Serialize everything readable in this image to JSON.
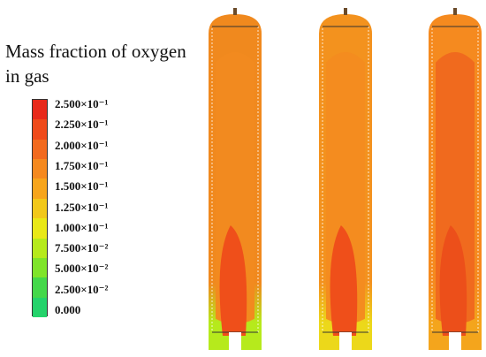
{
  "legend": {
    "title_line1": "Mass fraction of oxygen",
    "title_line2": "in gas",
    "ticks": [
      "2.500×10⁻¹",
      "2.250×10⁻¹",
      "2.000×10⁻¹",
      "1.750×10⁻¹",
      "1.500×10⁻¹",
      "1.250×10⁻¹",
      "1.000×10⁻¹",
      "7.500×10⁻²",
      "5.000×10⁻²",
      "2.500×10⁻²",
      "0.000"
    ],
    "colors": [
      "#e8291a",
      "#ef4a1a",
      "#f26a1e",
      "#f5891f",
      "#f7a51c",
      "#f2c81a",
      "#e9e817",
      "#b6ea1c",
      "#7fe42a",
      "#44d84a",
      "#24d36b"
    ]
  },
  "columns": [
    {
      "outer": "#f0891e",
      "inner": "#f28a1f",
      "plume": "#ef4f1a",
      "bottom": "#b6ea1c"
    },
    {
      "outer": "#f3921e",
      "inner": "#f48c1f",
      "plume": "#ef4f1a",
      "bottom": "#ecd81a"
    },
    {
      "outer": "#f58a1f",
      "inner": "#f06a1e",
      "plume": "#ec4f1a",
      "bottom": "#f4a51c"
    }
  ]
}
